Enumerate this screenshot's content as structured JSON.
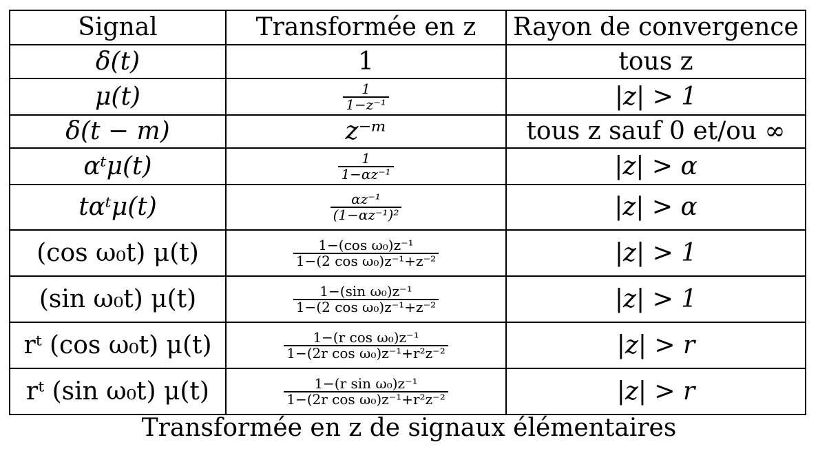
{
  "headers": [
    "Signal",
    "Transformée en z",
    "Rayon de convergence"
  ],
  "rows": [
    {
      "signal": "δ(t)",
      "transform": "1",
      "roc": "tous z"
    },
    {
      "signal": "μ(t)",
      "transform_num": "1",
      "transform_den": "1−z⁻¹",
      "roc": "|z| > 1"
    },
    {
      "signal": "δ(t − m)",
      "transform": "z⁻ᵐ",
      "roc": "tous z sauf 0 et/ou ∞"
    },
    {
      "signal": "αᵗμ(t)",
      "transform_num": "1",
      "transform_den": "1−αz⁻¹",
      "roc": "|z| > α"
    },
    {
      "signal": "tαᵗμ(t)",
      "transform_num": "αz⁻¹",
      "transform_den": "(1−αz⁻¹)²",
      "roc": "|z| > α"
    },
    {
      "signal": "(cos ω₀t) μ(t)",
      "transform_num": "1−(cos ω₀)z⁻¹",
      "transform_den": "1−(2 cos ω₀)z⁻¹+z⁻²",
      "roc": "|z| > 1"
    },
    {
      "signal": "(sin ω₀t) μ(t)",
      "transform_num": "1−(sin ω₀)z⁻¹",
      "transform_den": "1−(2 cos ω₀)z⁻¹+z⁻²",
      "roc": "|z| > 1"
    },
    {
      "signal": "rᵗ (cos ω₀t) μ(t)",
      "transform_num": "1−(r cos ω₀)z⁻¹",
      "transform_den": "1−(2r cos ω₀)z⁻¹+r²z⁻²",
      "roc": "|z| > r"
    },
    {
      "signal": "rᵗ (sin ω₀t) μ(t)",
      "transform_num": "1−(r sin ω₀)z⁻¹",
      "transform_den": "1−(2r cos ω₀)z⁻¹+r²z⁻²",
      "roc": "|z| > r"
    }
  ],
  "caption": "Transformée en z de signaux élémentaires"
}
